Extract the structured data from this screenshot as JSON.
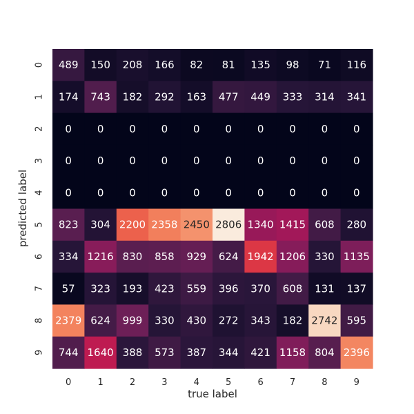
{
  "chart_data": {
    "type": "heatmap",
    "title": "",
    "xlabel": "true label",
    "ylabel": "predicted label",
    "x_categories": [
      "0",
      "1",
      "2",
      "3",
      "4",
      "5",
      "6",
      "7",
      "8",
      "9"
    ],
    "y_categories": [
      "0",
      "1",
      "2",
      "3",
      "4",
      "5",
      "6",
      "7",
      "8",
      "9"
    ],
    "values": [
      [
        489,
        150,
        208,
        166,
        82,
        81,
        135,
        98,
        71,
        116
      ],
      [
        174,
        743,
        182,
        292,
        163,
        477,
        449,
        333,
        314,
        341
      ],
      [
        0,
        0,
        0,
        0,
        0,
        0,
        0,
        0,
        0,
        0
      ],
      [
        0,
        0,
        0,
        0,
        0,
        0,
        0,
        0,
        0,
        0
      ],
      [
        0,
        0,
        0,
        0,
        0,
        0,
        0,
        0,
        0,
        0
      ],
      [
        823,
        304,
        2200,
        2358,
        2450,
        2806,
        1340,
        1415,
        608,
        280
      ],
      [
        334,
        1216,
        830,
        858,
        929,
        624,
        1942,
        1206,
        330,
        1135
      ],
      [
        57,
        323,
        193,
        423,
        559,
        396,
        370,
        608,
        131,
        137
      ],
      [
        2379,
        624,
        999,
        330,
        430,
        272,
        343,
        182,
        2742,
        595
      ],
      [
        744,
        1640,
        388,
        573,
        387,
        344,
        421,
        1158,
        804,
        2396
      ]
    ],
    "colormap": "rocket",
    "value_range": [
      0,
      2806
    ],
    "colorbar": false,
    "annotations": true,
    "grid": false
  }
}
